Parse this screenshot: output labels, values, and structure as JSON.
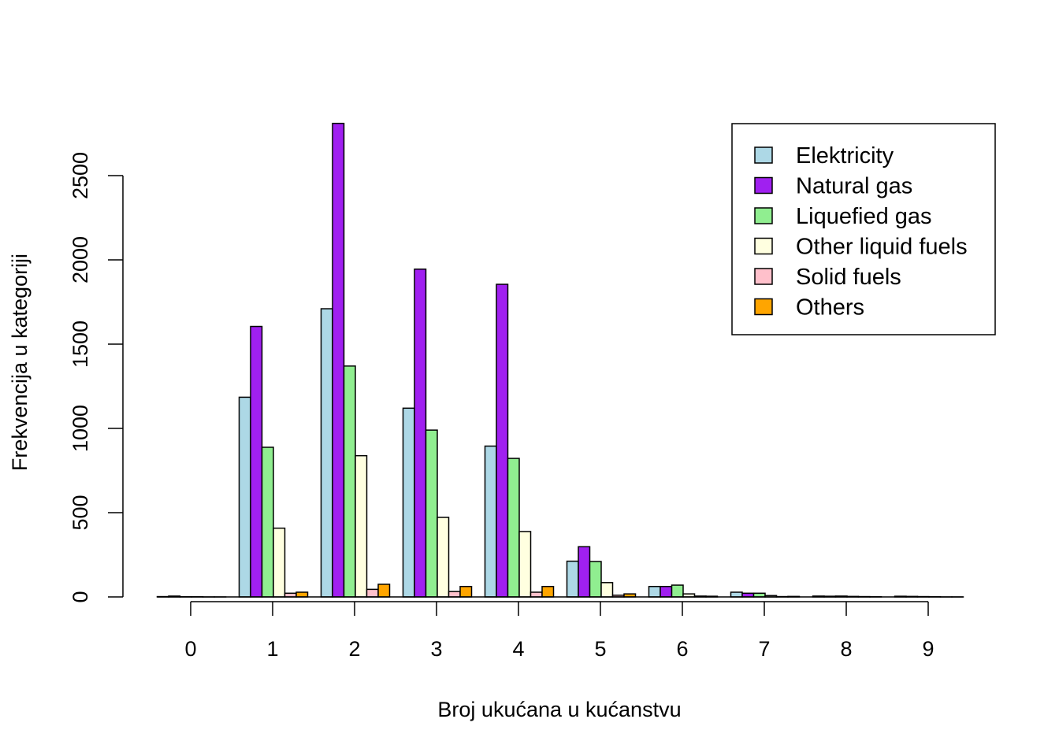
{
  "chart_data": {
    "type": "bar",
    "title": "",
    "xlabel": "Broj ukućana u kućanstvu",
    "ylabel": "Frekvencija u kategoriji",
    "ylim": [
      0,
      2800
    ],
    "yticks": [
      0,
      500,
      1000,
      1500,
      2000,
      2500
    ],
    "categories": [
      "0",
      "1",
      "2",
      "3",
      "4",
      "5",
      "6",
      "7",
      "8",
      "9"
    ],
    "legend_position": "top-right",
    "series": [
      {
        "name": "Elektricity",
        "color": "#ADD8E6",
        "values": [
          2,
          1185,
          1710,
          1120,
          895,
          212,
          62,
          28,
          5,
          4
        ]
      },
      {
        "name": "Natural gas",
        "color": "#A020F0",
        "values": [
          5,
          1605,
          2810,
          1945,
          1855,
          298,
          62,
          22,
          4,
          3
        ]
      },
      {
        "name": "Liquefied gas",
        "color": "#90EE90",
        "values": [
          1,
          888,
          1370,
          990,
          822,
          210,
          70,
          22,
          5,
          2
        ]
      },
      {
        "name": "Other liquid fuels",
        "color": "#FFFFE0",
        "values": [
          1,
          408,
          838,
          472,
          388,
          85,
          18,
          8,
          3,
          1
        ]
      },
      {
        "name": "Solid fuels",
        "color": "#FFC0CB",
        "values": [
          0,
          22,
          45,
          32,
          28,
          10,
          5,
          2,
          2,
          0
        ]
      },
      {
        "name": "Others",
        "color": "#FFA500",
        "values": [
          0,
          28,
          75,
          62,
          62,
          18,
          4,
          3,
          1,
          0
        ]
      }
    ]
  }
}
